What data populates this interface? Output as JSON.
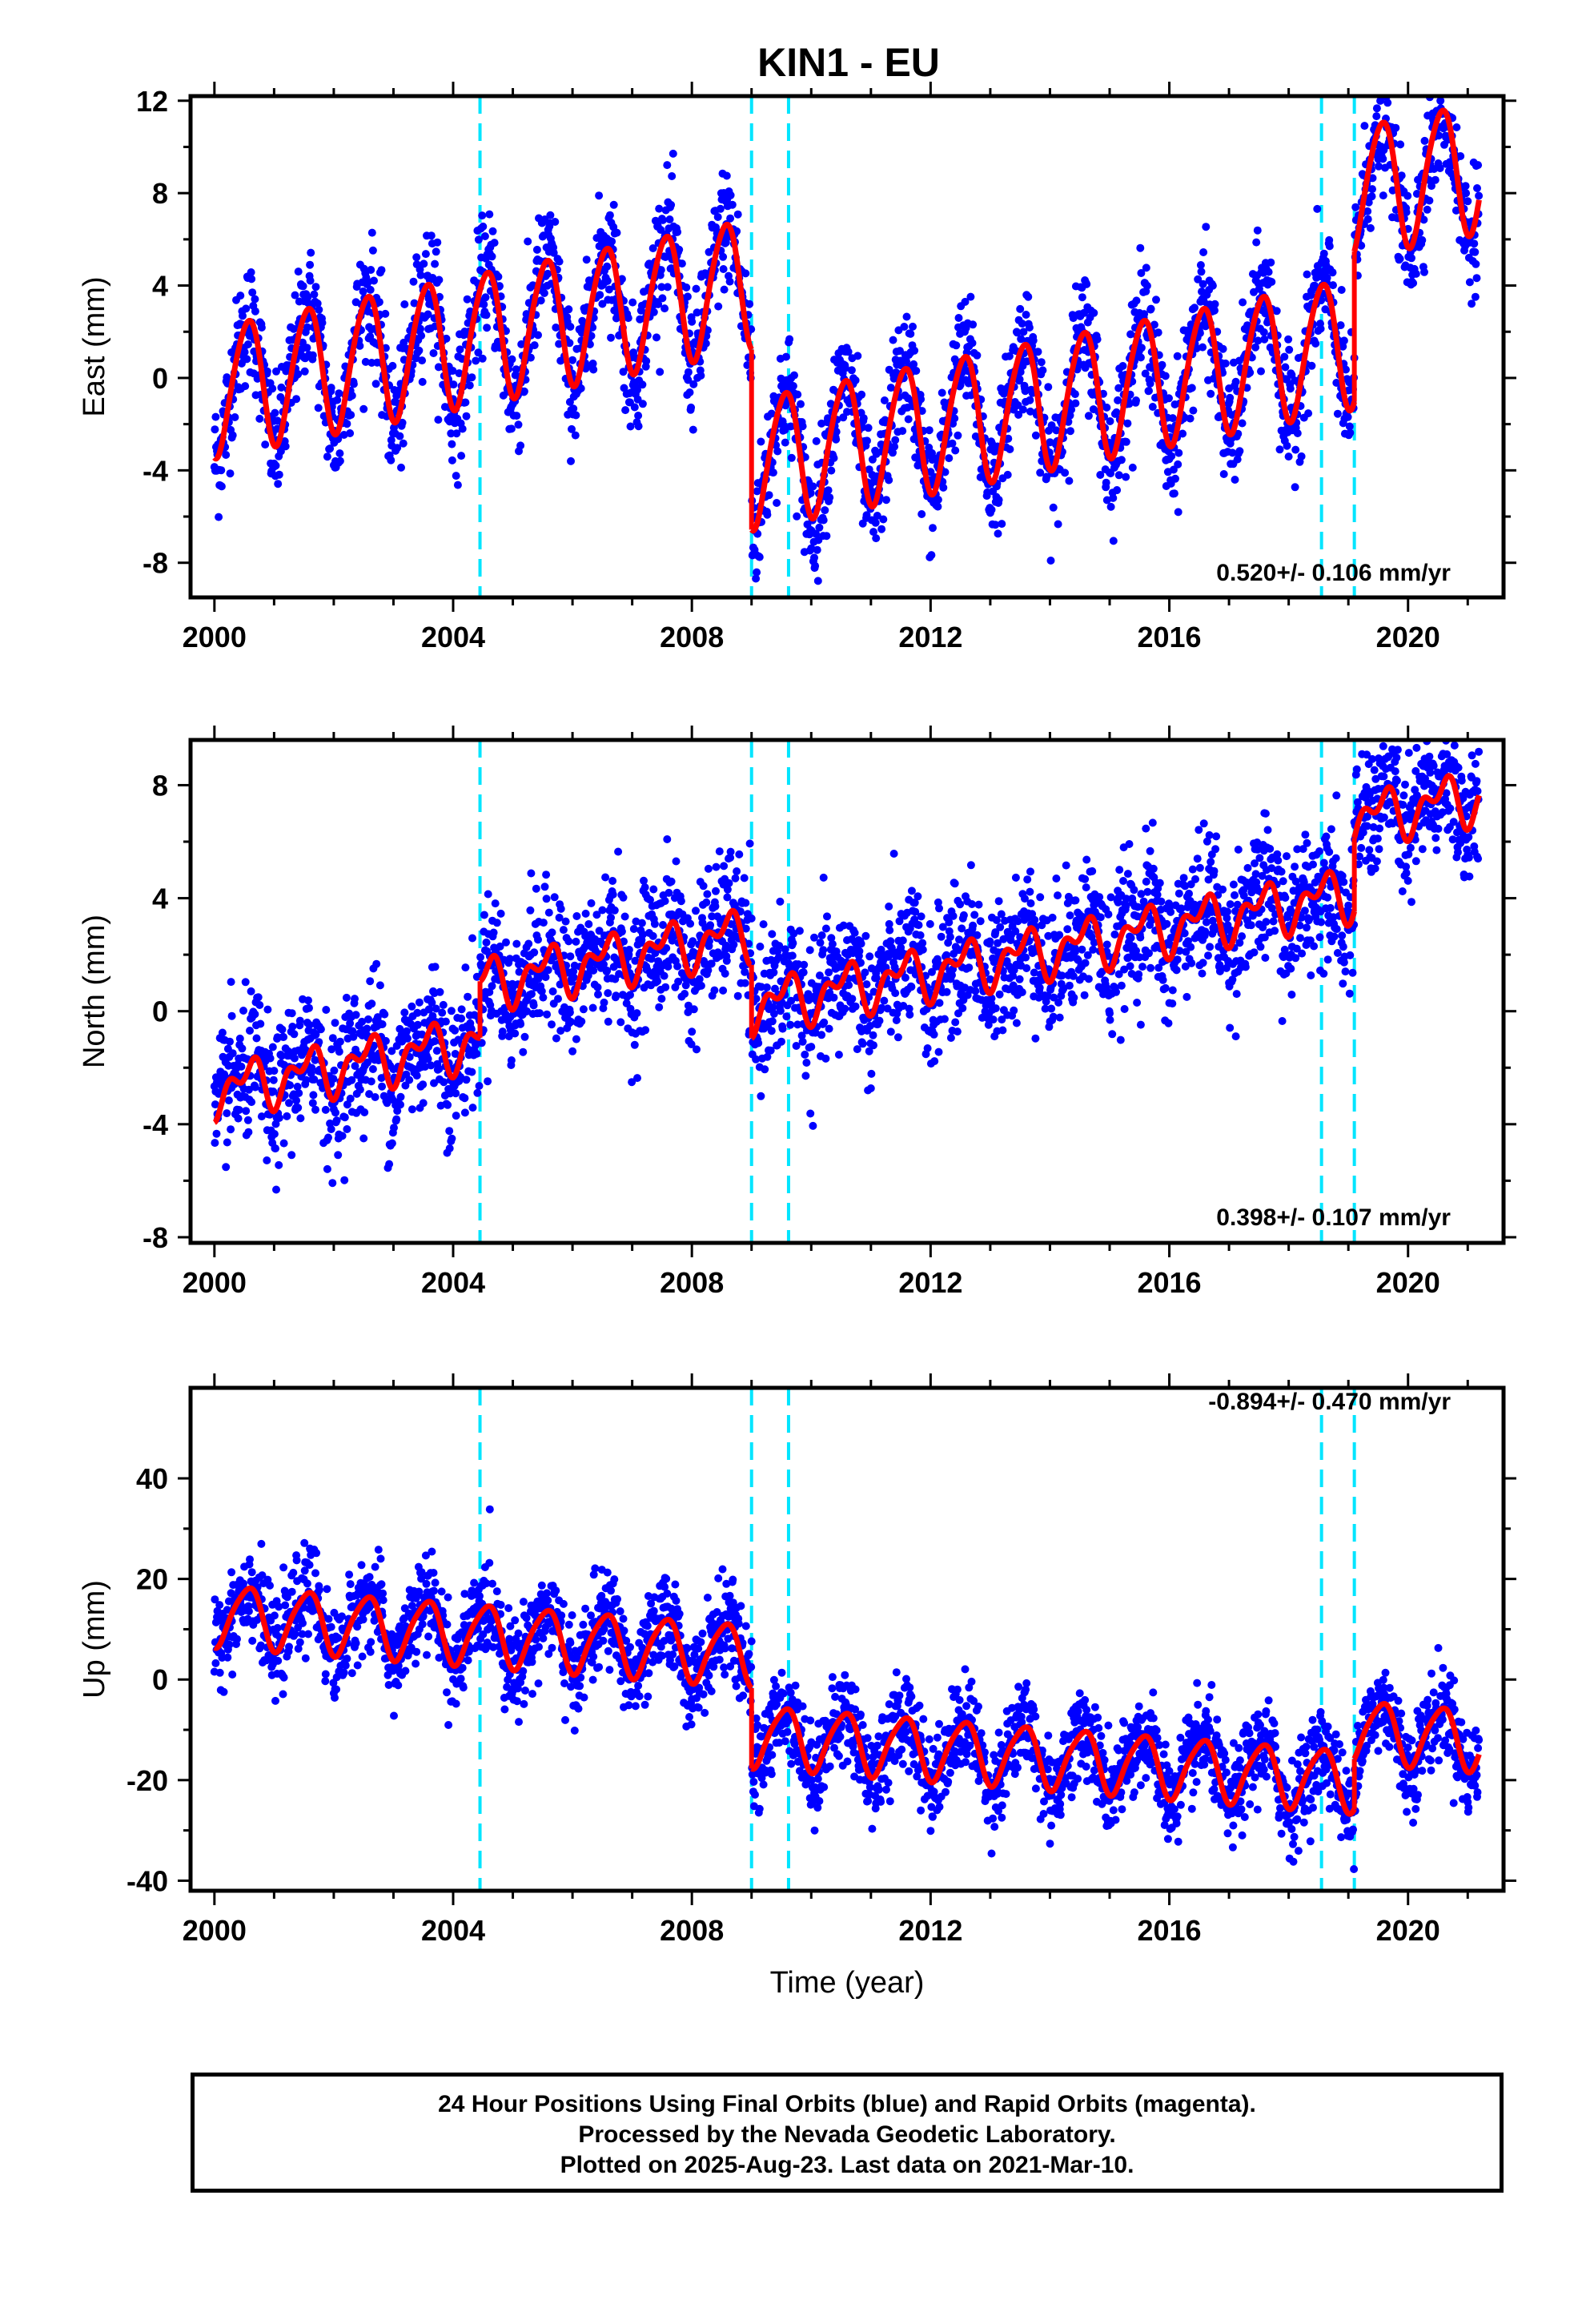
{
  "chart_data": [
    {
      "type": "scatter",
      "title": "KIN1 - EU",
      "ylabel": "East (mm)",
      "xlabel": "",
      "xlim": [
        1999.6,
        2021.6
      ],
      "ylim": [
        -9.5,
        12.2
      ],
      "x_ticks": [
        "2000",
        "2004",
        "2008",
        "2012",
        "2016",
        "2020"
      ],
      "y_ticks": [
        12,
        8,
        4,
        0,
        -4,
        -8
      ],
      "y_tick_labels": [
        "12",
        "8",
        "4",
        "0",
        "-4",
        "-8"
      ],
      "rate_label": "0.520+/- 0.106 mm/yr",
      "steps": [
        2004.45,
        2009.0,
        2009.62,
        2018.55,
        2019.1
      ],
      "model": {
        "trend": 0.52,
        "annual_amplitude": 2.8,
        "semiannual_amplitude": 0.3,
        "offset_start": -0.5,
        "jumps": [
          {
            "t": 2009.0,
            "dy": -7.8
          },
          {
            "t": 2019.1,
            "dy": 6.5
          }
        ]
      },
      "scatter_sigma": 1.3,
      "series": [
        {
          "values_desc": "daily final-orbit positions",
          "color": "#0000ff"
        },
        {
          "values_desc": "model fit",
          "color": "#ff0000"
        }
      ]
    },
    {
      "type": "scatter",
      "title": "",
      "ylabel": "North (mm)",
      "xlabel": "",
      "xlim": [
        1999.6,
        2021.6
      ],
      "ylim": [
        -8.2,
        9.6
      ],
      "x_ticks": [
        "2000",
        "2004",
        "2008",
        "2012",
        "2016",
        "2020"
      ],
      "y_ticks": [
        8,
        4,
        0,
        -4,
        -8
      ],
      "y_tick_labels": [
        "8",
        "4",
        "0",
        "-4",
        "-8"
      ],
      "rate_label": "0.398+/- 0.107 mm/yr",
      "steps": [
        2004.45,
        2009.0,
        2009.62,
        2018.55,
        2019.1
      ],
      "model": {
        "trend": 0.398,
        "annual_amplitude": 0.7,
        "semiannual_amplitude": 0.5,
        "offset_start": -2.8,
        "jumps": [
          {
            "t": 2004.45,
            "dy": 2.0
          },
          {
            "t": 2009.0,
            "dy": -2.6
          },
          {
            "t": 2019.1,
            "dy": 2.6
          }
        ]
      },
      "scatter_sigma": 1.2,
      "series": [
        {
          "values_desc": "daily final-orbit positions",
          "color": "#0000ff"
        },
        {
          "values_desc": "model fit",
          "color": "#ff0000"
        }
      ]
    },
    {
      "type": "scatter",
      "title": "",
      "ylabel": "Up (mm)",
      "xlabel": "Time (year)",
      "xlim": [
        1999.6,
        2021.6
      ],
      "ylim": [
        -42,
        58
      ],
      "x_ticks": [
        "2000",
        "2004",
        "2008",
        "2012",
        "2016",
        "2020"
      ],
      "y_ticks": [
        40,
        20,
        0,
        -20,
        -40
      ],
      "y_tick_labels": [
        "40",
        "20",
        "0",
        "-20",
        "-40"
      ],
      "rate_label": "-0.894+/- 0.470 mm/yr",
      "steps": [
        2004.45,
        2009.0,
        2009.62,
        2018.55,
        2019.1
      ],
      "model": {
        "trend": -0.894,
        "annual_amplitude": 6.0,
        "semiannual_amplitude": 1.0,
        "offset_start": 13.0,
        "jumps": [
          {
            "t": 2009.0,
            "dy": -16.0
          },
          {
            "t": 2019.1,
            "dy": 10.0
          }
        ]
      },
      "scatter_sigma": 4.5,
      "series": [
        {
          "values_desc": "daily final-orbit positions",
          "color": "#0000ff"
        },
        {
          "values_desc": "model fit",
          "color": "#ff0000"
        }
      ]
    }
  ],
  "footer": {
    "line1": "24 Hour Positions Using Final Orbits (blue) and Rapid Orbits (magenta).",
    "line2": "Processed by the Nevada Geodetic Laboratory.",
    "line3": "Plotted on 2025-Aug-23. Last data on 2021-Mar-10."
  },
  "colors": {
    "data": "#0000ff",
    "model": "#ff0000",
    "steps": "#00e5ff",
    "frame": "#000000"
  }
}
